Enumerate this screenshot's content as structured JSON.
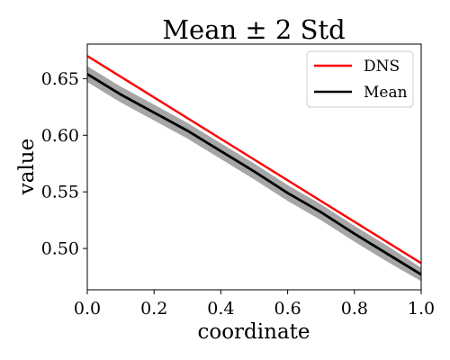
{
  "chart_data": {
    "type": "line",
    "title": "Mean ± 2 Std",
    "xlabel": "coordinate",
    "ylabel": "value",
    "xlim": [
      0.0,
      1.0
    ],
    "ylim": [
      0.4635,
      0.6805
    ],
    "x_ticks": [
      0.0,
      0.2,
      0.4,
      0.6,
      0.8,
      1.0
    ],
    "x_tick_labels": [
      "0.0",
      "0.2",
      "0.4",
      "0.6",
      "0.8",
      "1.0"
    ],
    "y_ticks": [
      0.5,
      0.55,
      0.6,
      0.65
    ],
    "y_tick_labels": [
      "0.50",
      "0.55",
      "0.60",
      "0.65"
    ],
    "grid": false,
    "legend_position": "top-right",
    "series": [
      {
        "name": "DNS",
        "color": "#ff0000",
        "x": [
          0.0,
          1.0
        ],
        "values": [
          0.67,
          0.487
        ]
      },
      {
        "name": "Mean",
        "color": "#000000",
        "x": [
          0.0,
          0.1,
          0.2,
          0.3,
          0.4,
          0.5,
          0.6,
          0.7,
          0.8,
          0.9,
          1.0
        ],
        "values": [
          0.654,
          0.636,
          0.62,
          0.604,
          0.586,
          0.568,
          0.549,
          0.532,
          0.513,
          0.495,
          0.477
        ]
      }
    ],
    "band": {
      "label": "±2 std",
      "color": "#a6a6a6",
      "x": [
        0.0,
        0.1,
        0.2,
        0.3,
        0.4,
        0.5,
        0.6,
        0.7,
        0.8,
        0.9,
        1.0
      ],
      "lower": [
        0.647,
        0.629,
        0.613,
        0.597,
        0.579,
        0.561,
        0.542,
        0.525,
        0.506,
        0.488,
        0.471
      ],
      "upper": [
        0.661,
        0.643,
        0.627,
        0.611,
        0.593,
        0.575,
        0.556,
        0.539,
        0.52,
        0.502,
        0.483
      ]
    }
  }
}
